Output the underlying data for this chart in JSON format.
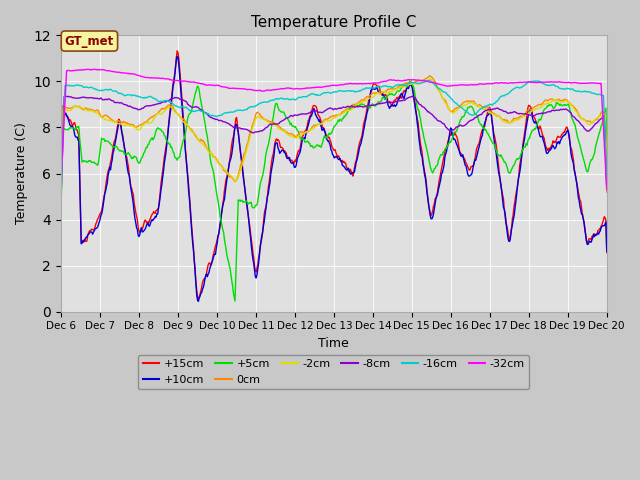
{
  "title": "Temperature Profile C",
  "xlabel": "Time",
  "ylabel": "Temperature (C)",
  "ylim": [
    0,
    12
  ],
  "annotation": "GT_met",
  "fig_bg_color": "#c8c8c8",
  "plot_bg_color": "#e0e0e0",
  "series_colors": {
    "+15cm": "#ff0000",
    "+10cm": "#0000dd",
    "+5cm": "#00dd00",
    "0cm": "#ff8800",
    "-2cm": "#dddd00",
    "-8cm": "#8800cc",
    "-16cm": "#00cccc",
    "-32cm": "#ff00ff"
  },
  "tick_labels": [
    "Dec 6",
    "Dec 7",
    "Dec 8",
    "Dec 9",
    "Dec 10",
    "Dec 11",
    "Dec 12",
    "Dec 13",
    "Dec 14",
    "Dec 15",
    "Dec 16",
    "Dec 17",
    "Dec 18",
    "Dec 19",
    "Dec 20"
  ],
  "yticks": [
    0,
    2,
    4,
    6,
    8,
    10,
    12
  ],
  "legend_row1": [
    "+15cm",
    "+10cm",
    "+5cm",
    "0cm",
    "-2cm",
    "-8cm"
  ],
  "legend_row2": [
    "-16cm",
    "-32cm"
  ]
}
